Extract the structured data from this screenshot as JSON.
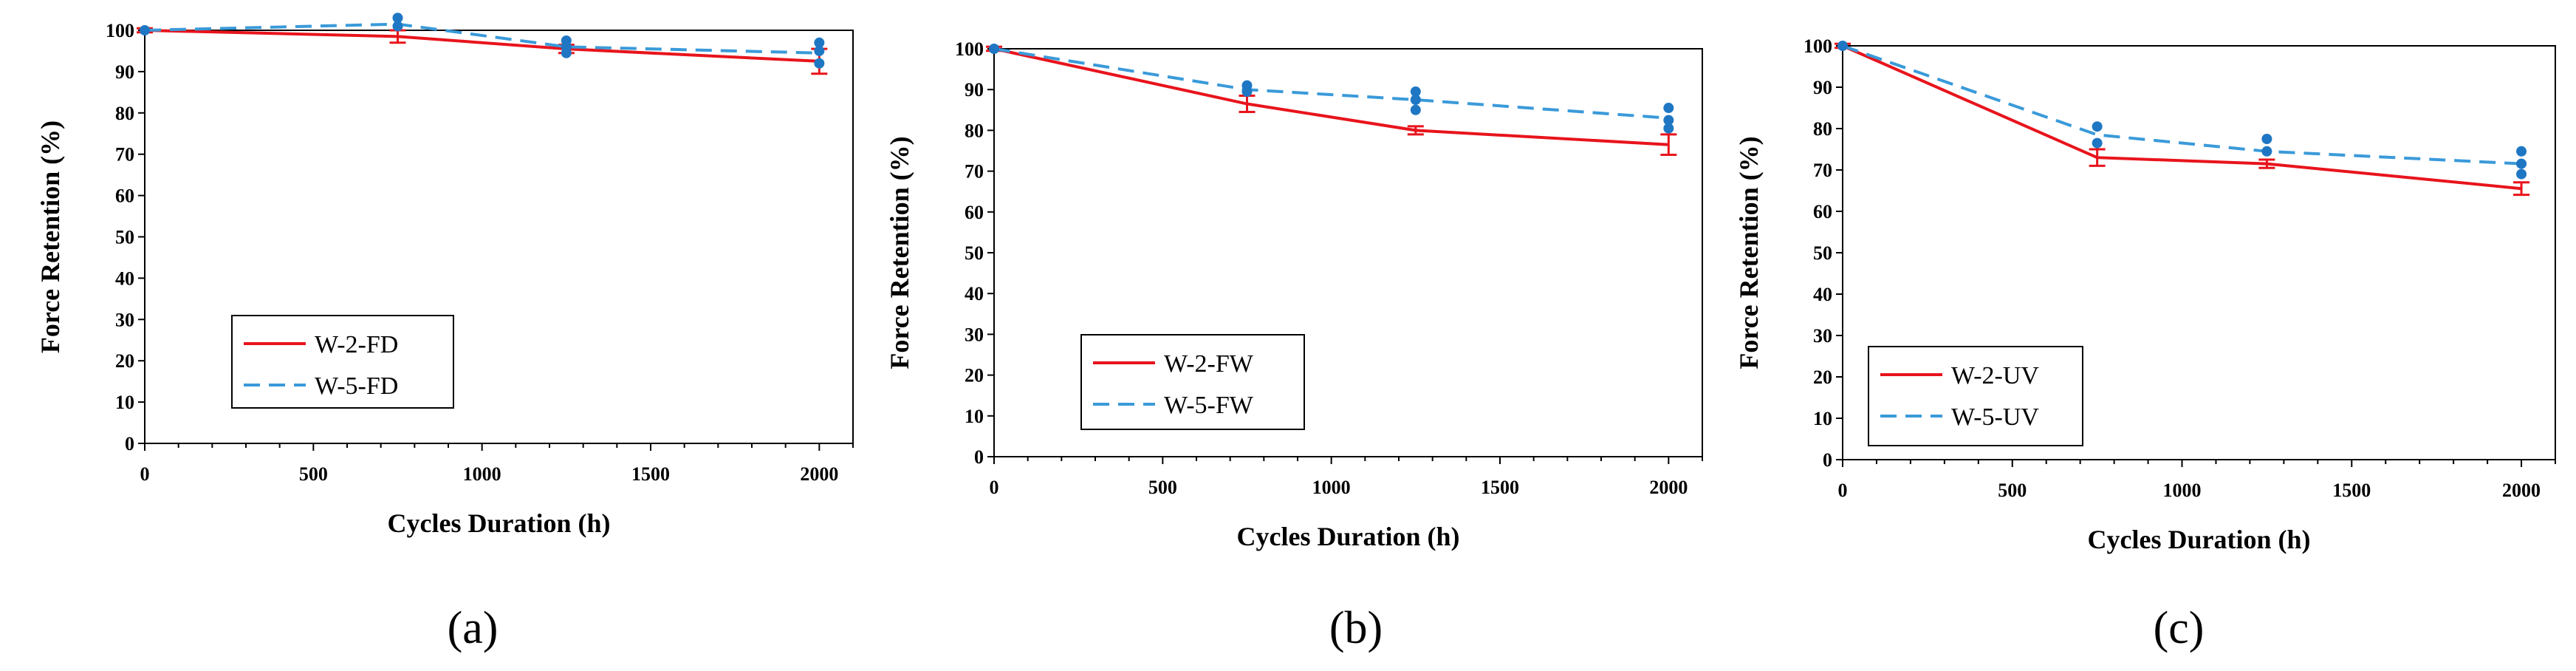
{
  "chart_data": [
    {
      "type": "line",
      "caption": "(a)",
      "xlabel": "Cycles Duration  (h)",
      "ylabel": "Force Retention (%)",
      "xlim": [
        0,
        2100
      ],
      "ylim": [
        0,
        100
      ],
      "xticks": [
        0,
        500,
        1000,
        1500,
        2000
      ],
      "yticks": [
        0,
        10,
        20,
        30,
        40,
        50,
        60,
        70,
        80,
        90,
        100
      ],
      "legend_position": "lower-left",
      "x": [
        0,
        750,
        1250,
        2000
      ],
      "series": [
        {
          "name": "W-2-FD",
          "color": "#e8141c",
          "dash": "solid",
          "values": [
            100,
            98.5,
            95.5,
            92.5
          ],
          "err": [
            0.5,
            1.5,
            1.0,
            3.0
          ]
        },
        {
          "name": "W-5-FD",
          "color": "#3a9ad9",
          "dash": "dashed",
          "values": [
            100,
            101.5,
            96,
            94.5
          ],
          "err": [
            0,
            0,
            0,
            0
          ]
        }
      ],
      "markers": [
        {
          "x": 0,
          "y": 100
        },
        {
          "x": 750,
          "y": 103
        },
        {
          "x": 750,
          "y": 101
        },
        {
          "x": 1250,
          "y": 97.5
        },
        {
          "x": 1250,
          "y": 96
        },
        {
          "x": 1250,
          "y": 94.5
        },
        {
          "x": 2000,
          "y": 97
        },
        {
          "x": 2000,
          "y": 95
        },
        {
          "x": 2000,
          "y": 92
        }
      ]
    },
    {
      "type": "line",
      "caption": "(b)",
      "xlabel": "Cycles Duration  (h)",
      "ylabel": "Force Retention (%)",
      "xlim": [
        0,
        2100
      ],
      "ylim": [
        0,
        100
      ],
      "xticks": [
        0,
        500,
        1000,
        1500,
        2000
      ],
      "yticks": [
        0,
        10,
        20,
        30,
        40,
        50,
        60,
        70,
        80,
        90,
        100
      ],
      "legend_position": "lower-left",
      "x": [
        0,
        750,
        1250,
        2000
      ],
      "series": [
        {
          "name": "W-2-FW",
          "color": "#e8141c",
          "dash": "solid",
          "values": [
            100,
            86.5,
            80,
            76.5
          ],
          "err": [
            0.5,
            2.0,
            1.0,
            2.5
          ]
        },
        {
          "name": "W-5-FW",
          "color": "#3a9ad9",
          "dash": "dashed",
          "values": [
            100,
            90,
            87.5,
            83
          ],
          "err": [
            0,
            0,
            0,
            0
          ]
        }
      ],
      "markers": [
        {
          "x": 0,
          "y": 100
        },
        {
          "x": 750,
          "y": 91
        },
        {
          "x": 750,
          "y": 89.5
        },
        {
          "x": 1250,
          "y": 89.5
        },
        {
          "x": 1250,
          "y": 87.5
        },
        {
          "x": 1250,
          "y": 85
        },
        {
          "x": 2000,
          "y": 85.5
        },
        {
          "x": 2000,
          "y": 82.5
        },
        {
          "x": 2000,
          "y": 80.5
        }
      ]
    },
    {
      "type": "line",
      "caption": "(c)",
      "xlabel": "Cycles Duration  (h)",
      "ylabel": "Force Retention (%)",
      "xlim": [
        0,
        2100
      ],
      "ylim": [
        0,
        100
      ],
      "xticks": [
        0,
        500,
        1000,
        1500,
        2000
      ],
      "yticks": [
        0,
        10,
        20,
        30,
        40,
        50,
        60,
        70,
        80,
        90,
        100
      ],
      "legend_position": "lower-left",
      "x": [
        0,
        750,
        1250,
        2000
      ],
      "series": [
        {
          "name": "W-2-UV",
          "color": "#e8141c",
          "dash": "solid",
          "values": [
            100,
            73,
            71.5,
            65.5
          ],
          "err": [
            0.5,
            2.0,
            1.0,
            1.5
          ]
        },
        {
          "name": "W-5-UV",
          "color": "#3a9ad9",
          "dash": "dashed",
          "values": [
            100,
            78.5,
            74.5,
            71.5
          ],
          "err": [
            0,
            0,
            0,
            0
          ]
        }
      ],
      "markers": [
        {
          "x": 0,
          "y": 100
        },
        {
          "x": 750,
          "y": 80.5
        },
        {
          "x": 750,
          "y": 76.5
        },
        {
          "x": 1250,
          "y": 77.5
        },
        {
          "x": 1250,
          "y": 74.5
        },
        {
          "x": 2000,
          "y": 74.5
        },
        {
          "x": 2000,
          "y": 71.5
        },
        {
          "x": 2000,
          "y": 69
        }
      ]
    }
  ]
}
